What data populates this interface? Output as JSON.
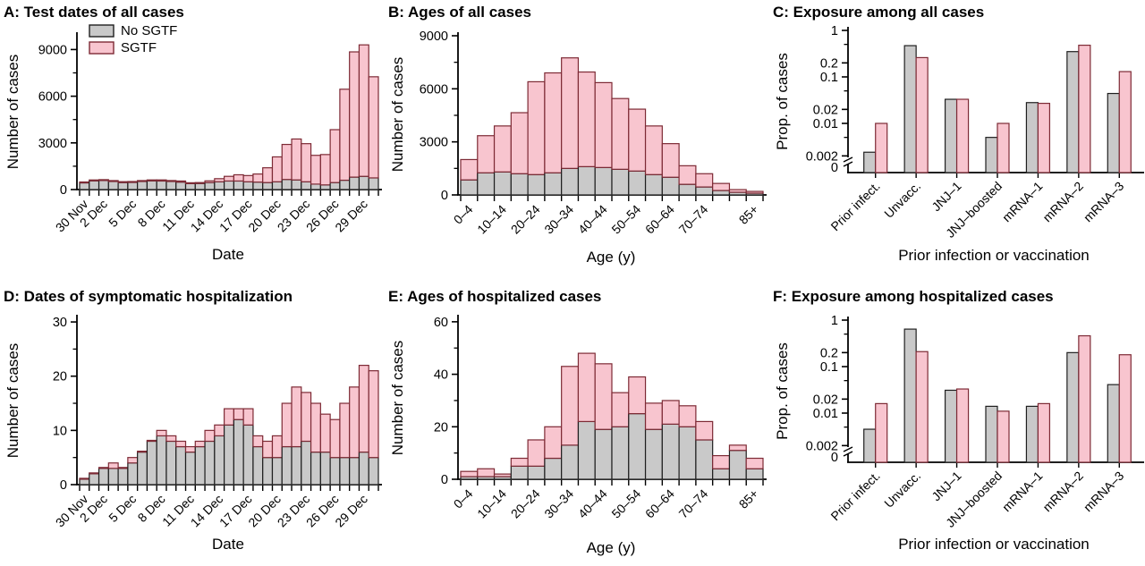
{
  "figure": {
    "colors": {
      "no_sgtf_fill": "#c9c9c9",
      "no_sgtf_border": "#1f1f1f",
      "sgtf_fill": "#f8c5cf",
      "sgtf_border": "#7d2a35",
      "axis": "#000000",
      "text": "#000000",
      "background": "#ffffff"
    },
    "legend": {
      "position": "top-left-panel-A",
      "items": [
        {
          "label": "No SGTF",
          "fill": "#c9c9c9",
          "border": "#1f1f1f"
        },
        {
          "label": "SGTF",
          "fill": "#f8c5cf",
          "border": "#7d2a35"
        }
      ]
    }
  },
  "chart_data": [
    {
      "id": "A",
      "type": "bar",
      "stacked": true,
      "title": "A: Test dates of all cases",
      "xlabel": "Date",
      "ylabel": "Number of cases",
      "ylim": [
        0,
        10000
      ],
      "yticks": [
        0,
        3000,
        6000,
        9000
      ],
      "yminor": [
        1500,
        4500,
        7500
      ],
      "grid": false,
      "legend_visible": true,
      "categories": [
        "30 Nov",
        "1 Dec",
        "2 Dec",
        "3 Dec",
        "4 Dec",
        "5 Dec",
        "6 Dec",
        "7 Dec",
        "8 Dec",
        "9 Dec",
        "10 Dec",
        "11 Dec",
        "12 Dec",
        "13 Dec",
        "14 Dec",
        "15 Dec",
        "16 Dec",
        "17 Dec",
        "18 Dec",
        "19 Dec",
        "20 Dec",
        "21 Dec",
        "22 Dec",
        "23 Dec",
        "24 Dec",
        "25 Dec",
        "26 Dec",
        "27 Dec",
        "28 Dec",
        "29 Dec",
        "30 Dec"
      ],
      "label_indices": [
        0,
        2,
        5,
        8,
        11,
        14,
        17,
        20,
        23,
        26,
        29
      ],
      "tick_labels": [
        "30 Nov",
        "2 Dec",
        "5 Dec",
        "8 Dec",
        "11 Dec",
        "14 Dec",
        "17 Dec",
        "20 Dec",
        "23 Dec",
        "26 Dec",
        "29 Dec"
      ],
      "series": [
        {
          "name": "No SGTF",
          "values": [
            430,
            560,
            580,
            520,
            450,
            460,
            520,
            560,
            550,
            520,
            480,
            380,
            390,
            450,
            500,
            550,
            550,
            500,
            480,
            450,
            500,
            650,
            620,
            500,
            350,
            300,
            450,
            600,
            800,
            850,
            750
          ]
        },
        {
          "name": "SGTF",
          "values": [
            20,
            40,
            40,
            40,
            30,
            40,
            40,
            60,
            70,
            60,
            70,
            40,
            60,
            110,
            200,
            300,
            400,
            400,
            520,
            950,
            1600,
            2250,
            2630,
            2450,
            1850,
            1950,
            3400,
            5850,
            8050,
            8450,
            6500
          ]
        }
      ]
    },
    {
      "id": "B",
      "type": "bar",
      "stacked": true,
      "title": "B: Ages of all cases",
      "xlabel": "Age (y)",
      "ylabel": "Number of cases",
      "ylim": [
        0,
        9100
      ],
      "yticks": [
        0,
        3000,
        6000,
        9000
      ],
      "yminor": [
        1500,
        4500,
        7500
      ],
      "grid": false,
      "legend_visible": false,
      "categories": [
        "0–4",
        "5–9",
        "10–14",
        "15–19",
        "20–24",
        "25–29",
        "30–34",
        "35–39",
        "40–44",
        "45–49",
        "50–54",
        "55–59",
        "60–64",
        "65–69",
        "70–74",
        "75–79",
        "80–84",
        "85+"
      ],
      "label_indices": [
        0,
        2,
        4,
        6,
        8,
        10,
        12,
        14,
        17
      ],
      "tick_labels": [
        "0–4",
        "10–14",
        "20–24",
        "30–34",
        "40–44",
        "50–54",
        "60–64",
        "70–74",
        "85+"
      ],
      "series": [
        {
          "name": "No SGTF",
          "values": [
            850,
            1250,
            1300,
            1200,
            1150,
            1250,
            1500,
            1600,
            1550,
            1450,
            1350,
            1150,
            1000,
            600,
            450,
            250,
            150,
            100
          ]
        },
        {
          "name": "SGTF",
          "values": [
            1150,
            2100,
            2600,
            3450,
            5250,
            5650,
            6250,
            5350,
            4800,
            4000,
            3500,
            2750,
            1900,
            1050,
            750,
            400,
            150,
            100
          ]
        }
      ]
    },
    {
      "id": "C",
      "type": "grouped_bar_log",
      "stacked": false,
      "title": "C: Exposure among all cases",
      "xlabel": "Prior infection or vaccination",
      "ylabel": "Prop. of cases",
      "ylog_range": [
        0.002,
        1
      ],
      "yticks_labeled": [
        1,
        0.2,
        0.1,
        0.02,
        0.01,
        0.002
      ],
      "yticks_minor": [
        0.5,
        0.05,
        0.005
      ],
      "zero_label": "0",
      "axis_break": true,
      "grid": false,
      "categories": [
        "Prior infect.",
        "Unvacc.",
        "JNJ–1",
        "JNJ–boosted",
        "mRNA–1",
        "mRNA–2",
        "mRNA–3"
      ],
      "series": [
        {
          "name": "No SGTF",
          "values": [
            0.0024,
            0.47,
            0.033,
            0.005,
            0.028,
            0.35,
            0.044
          ]
        },
        {
          "name": "SGTF",
          "values": [
            0.01,
            0.26,
            0.033,
            0.01,
            0.027,
            0.48,
            0.13
          ]
        }
      ]
    },
    {
      "id": "D",
      "type": "bar",
      "stacked": true,
      "title": "D: Dates of symptomatic hospitalization",
      "xlabel": "Date",
      "ylabel": "Number of cases",
      "ylim": [
        0,
        31
      ],
      "yticks": [
        0,
        10,
        20,
        30
      ],
      "yminor": [
        5,
        15,
        25
      ],
      "grid": false,
      "legend_visible": false,
      "categories": [
        "30 Nov",
        "1 Dec",
        "2 Dec",
        "3 Dec",
        "4 Dec",
        "5 Dec",
        "6 Dec",
        "7 Dec",
        "8 Dec",
        "9 Dec",
        "10 Dec",
        "11 Dec",
        "12 Dec",
        "13 Dec",
        "14 Dec",
        "15 Dec",
        "16 Dec",
        "17 Dec",
        "18 Dec",
        "19 Dec",
        "20 Dec",
        "21 Dec",
        "22 Dec",
        "23 Dec",
        "24 Dec",
        "25 Dec",
        "26 Dec",
        "27 Dec",
        "28 Dec",
        "29 Dec",
        "30 Dec"
      ],
      "label_indices": [
        0,
        2,
        5,
        8,
        11,
        14,
        17,
        20,
        23,
        26,
        29
      ],
      "tick_labels": [
        "30 Nov",
        "2 Dec",
        "5 Dec",
        "8 Dec",
        "11 Dec",
        "14 Dec",
        "17 Dec",
        "20 Dec",
        "23 Dec",
        "26 Dec",
        "29 Dec"
      ],
      "series": [
        {
          "name": "No SGTF",
          "values": [
            1,
            2,
            3,
            3,
            3,
            4,
            6,
            8,
            9,
            8,
            7,
            6,
            7,
            8,
            9,
            11,
            12,
            11,
            7,
            5,
            5,
            7,
            7,
            8,
            6,
            6,
            5,
            5,
            5,
            6,
            5
          ]
        },
        {
          "name": "SGTF",
          "values": [
            0,
            0,
            0,
            1,
            0,
            1,
            0,
            0,
            1,
            1,
            1,
            1,
            1,
            2,
            2,
            3,
            2,
            3,
            2,
            3,
            4,
            8,
            11,
            9,
            9,
            7,
            7,
            10,
            13,
            16,
            16
          ]
        }
      ]
    },
    {
      "id": "E",
      "type": "bar",
      "stacked": true,
      "title": "E: Ages of hospitalized cases",
      "xlabel": "Age (y)",
      "ylabel": "Number of cases",
      "ylim": [
        0,
        62
      ],
      "yticks": [
        0,
        20,
        40,
        60
      ],
      "yminor": [
        10,
        30,
        50
      ],
      "grid": false,
      "legend_visible": false,
      "categories": [
        "0–4",
        "5–9",
        "10–14",
        "15–19",
        "20–24",
        "25–29",
        "30–34",
        "35–39",
        "40–44",
        "45–49",
        "50–54",
        "55–59",
        "60–64",
        "65–69",
        "70–74",
        "75–79",
        "80–84",
        "85+"
      ],
      "label_indices": [
        0,
        2,
        4,
        6,
        8,
        10,
        12,
        14,
        17
      ],
      "tick_labels": [
        "0–4",
        "10–14",
        "20–24",
        "30–34",
        "40–44",
        "50–54",
        "60–64",
        "70–74",
        "85+"
      ],
      "series": [
        {
          "name": "No SGTF",
          "values": [
            1,
            1,
            1,
            5,
            5,
            8,
            13,
            22,
            19,
            20,
            25,
            19,
            21,
            20,
            15,
            4,
            11,
            4
          ]
        },
        {
          "name": "SGTF",
          "values": [
            2,
            3,
            1,
            3,
            10,
            12,
            30,
            26,
            25,
            13,
            14,
            10,
            9,
            8,
            7,
            5,
            2,
            4
          ]
        }
      ]
    },
    {
      "id": "F",
      "type": "grouped_bar_log",
      "stacked": false,
      "title": "F: Exposure among hospitalized cases",
      "xlabel": "Prior infection or vaccination",
      "ylabel": "Prop. of cases",
      "ylog_range": [
        0.002,
        1
      ],
      "yticks_labeled": [
        1,
        0.2,
        0.1,
        0.02,
        0.01,
        0.002
      ],
      "yticks_minor": [
        0.5,
        0.05,
        0.005
      ],
      "zero_label": "0",
      "axis_break": true,
      "grid": false,
      "categories": [
        "Prior infect.",
        "Unvacc.",
        "JNJ–1",
        "JNJ–boosted",
        "mRNA–1",
        "mRNA–2",
        "mRNA–3"
      ],
      "series": [
        {
          "name": "No SGTF",
          "values": [
            0.0045,
            0.64,
            0.031,
            0.014,
            0.014,
            0.2,
            0.041
          ]
        },
        {
          "name": "SGTF",
          "values": [
            0.016,
            0.21,
            0.033,
            0.011,
            0.016,
            0.46,
            0.18
          ]
        }
      ]
    }
  ]
}
